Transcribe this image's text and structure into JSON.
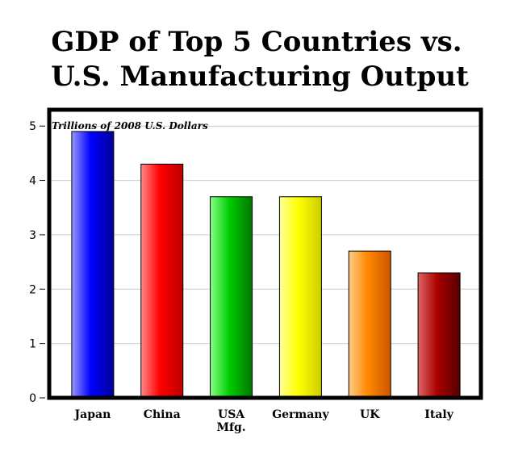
{
  "chart_data": {
    "type": "bar",
    "title_lines": [
      "GDP of Top 5 Countries vs.",
      "U.S. Manufacturing Output"
    ],
    "ylabel": "Trillions of 2008 U.S. Dollars",
    "xlabel": "",
    "ylim": [
      0,
      5.3
    ],
    "yticks": [
      0,
      1,
      2,
      3,
      4,
      5
    ],
    "grid": true,
    "categories": [
      {
        "lines": [
          "Japan"
        ]
      },
      {
        "lines": [
          "China"
        ]
      },
      {
        "lines": [
          "USA",
          "Mfg."
        ]
      },
      {
        "lines": [
          "Germany"
        ]
      },
      {
        "lines": [
          "UK"
        ]
      },
      {
        "lines": [
          "Italy"
        ]
      }
    ],
    "values": [
      4.9,
      4.3,
      3.7,
      3.7,
      2.7,
      2.3
    ],
    "colors": [
      [
        "#9999ff",
        "#0000ff",
        "#000099"
      ],
      [
        "#ff8888",
        "#ff0000",
        "#bb0000"
      ],
      [
        "#88ff88",
        "#00cc00",
        "#007700"
      ],
      [
        "#ffff99",
        "#ffff00",
        "#cccc00"
      ],
      [
        "#ffcc88",
        "#ff8800",
        "#cc5500"
      ],
      [
        "#dd6666",
        "#aa0000",
        "#550000"
      ]
    ]
  }
}
